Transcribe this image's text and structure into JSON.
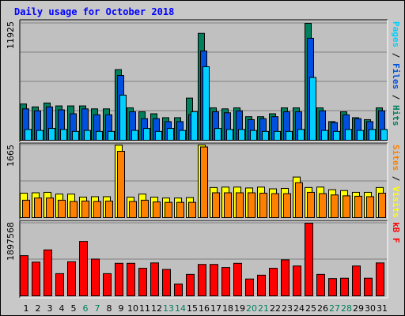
{
  "chart_data": {
    "type": "bar",
    "title": "Daily usage for October 2018",
    "categories": [
      "1",
      "2",
      "3",
      "4",
      "5",
      "6",
      "7",
      "8",
      "9",
      "10",
      "11",
      "12",
      "13",
      "14",
      "15",
      "16",
      "17",
      "18",
      "19",
      "20",
      "21",
      "22",
      "23",
      "24",
      "25",
      "26",
      "27",
      "28",
      "29",
      "30",
      "31"
    ],
    "weekend_days": [
      "6",
      "7",
      "13",
      "14",
      "20",
      "21",
      "27",
      "28"
    ],
    "panels": [
      {
        "id": "hits-files-pages",
        "max_label": "11925",
        "ymax": 11925,
        "axis_label_parts": [
          {
            "text": "Pages",
            "color": "#00d0ff"
          },
          {
            "text": " / ",
            "color": "#000000"
          },
          {
            "text": "Files",
            "color": "#0050e0"
          },
          {
            "text": " / ",
            "color": "#000000"
          },
          {
            "text": "Hits",
            "color": "#00805c"
          }
        ],
        "series": [
          {
            "name": "Hits",
            "color": "#00805c",
            "values": [
              3700,
              3400,
              3800,
              3500,
              3500,
              3500,
              3200,
              3200,
              7200,
              3300,
              2900,
              2700,
              2300,
              2300,
              4300,
              10900,
              3300,
              3200,
              3300,
              2400,
              2400,
              2700,
              3300,
              3300,
              11925,
              3300,
              1900,
              2900,
              2300,
              2100,
              3300
            ]
          },
          {
            "name": "Files",
            "color": "#0050e0",
            "values": [
              3200,
              3000,
              3400,
              3100,
              2700,
              3200,
              2600,
              2600,
              6600,
              2900,
              2200,
              2200,
              1900,
              1900,
              2600,
              9100,
              2900,
              2800,
              3000,
              2100,
              2200,
              2400,
              2900,
              2900,
              10400,
              3000,
              1800,
              2600,
              2200,
              1900,
              3000
            ]
          },
          {
            "name": "Pages",
            "color": "#00d0ff",
            "values": [
              1100,
              1000,
              1200,
              1100,
              900,
              1000,
              900,
              900,
              4600,
              1000,
              1200,
              900,
              1200,
              1000,
              2900,
              7500,
              1200,
              1100,
              1100,
              1000,
              900,
              900,
              900,
              1100,
              6400,
              1000,
              900,
              1100,
              1000,
              1100,
              1100
            ]
          }
        ]
      },
      {
        "id": "visits-sites",
        "max_label": "1665",
        "ymax": 1665,
        "axis_label_parts": [
          {
            "text": "Sites",
            "color": "#ff8000"
          },
          {
            "text": " / ",
            "color": "#000000"
          },
          {
            "text": "Visits",
            "color": "#ffff00"
          }
        ],
        "series": [
          {
            "name": "Visits",
            "color": "#ffff00",
            "values": [
              560,
              570,
              580,
              540,
              540,
              470,
              480,
              480,
              1660,
              470,
              540,
              470,
              450,
              450,
              460,
              1665,
              690,
              700,
              700,
              680,
              700,
              660,
              670,
              930,
              690,
              700,
              640,
              620,
              580,
              580,
              690
            ]
          },
          {
            "name": "Sites",
            "color": "#ff8000",
            "values": [
              400,
              450,
              450,
              400,
              370,
              380,
              370,
              380,
              1520,
              370,
              400,
              360,
              350,
              350,
              350,
              1620,
              570,
              570,
              570,
              570,
              560,
              550,
              550,
              800,
              580,
              550,
              520,
              500,
              490,
              480,
              560
            ]
          }
        ]
      },
      {
        "id": "kbytes",
        "max_label": "1897568",
        "ymax": 1897568,
        "axis_label_parts": [
          {
            "text": "kB F",
            "color": "#ff0000"
          }
        ],
        "series": [
          {
            "name": "kB F",
            "color": "#ff0000",
            "values": [
              1050000,
              880000,
              1200000,
              580000,
              890000,
              1420000,
              960000,
              580000,
              850000,
              850000,
              720000,
              860000,
              690000,
              310000,
              560000,
              820000,
              820000,
              740000,
              850000,
              440000,
              540000,
              720000,
              940000,
              780000,
              1897568,
              560000,
              450000,
              460000,
              780000,
              460000,
              860000
            ]
          }
        ]
      }
    ],
    "colors": {
      "background": "#c8c8c8",
      "plot_background": "#c0c0c0",
      "title": "#0000ff",
      "day_label": "#000000",
      "weekend_label": "#00805c",
      "gridline": "#808080"
    }
  }
}
